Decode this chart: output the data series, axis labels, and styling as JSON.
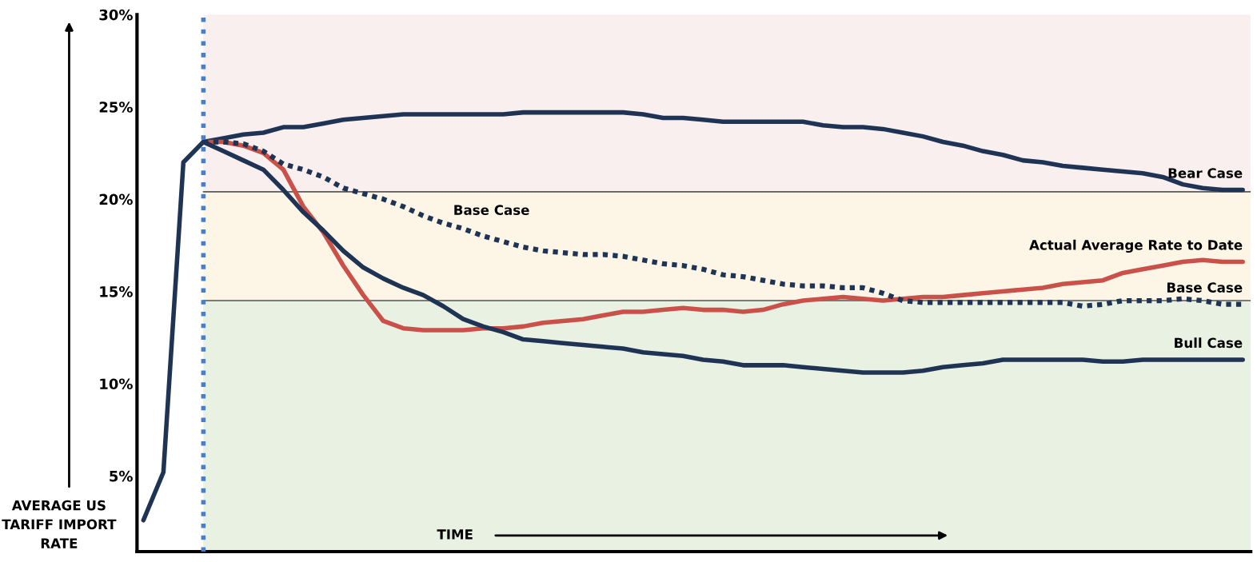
{
  "chart_data": {
    "type": "line",
    "ylabel": "AVERAGE US\nTARIFF IMPORT\nRATE",
    "xlabel": "TIME",
    "categories": [
      null,
      null,
      null,
      null,
      null,
      null,
      null,
      null,
      null,
      null,
      null,
      null,
      null,
      null,
      null,
      null,
      null,
      null,
      null,
      null,
      null,
      null,
      null,
      null,
      null,
      null,
      null,
      null,
      null,
      null,
      null,
      null,
      null,
      null,
      null,
      null,
      null,
      null,
      null,
      null,
      null,
      null,
      null,
      null,
      null,
      null,
      null,
      null,
      null,
      null,
      null,
      null,
      null,
      null,
      null,
      null
    ],
    "series": [
      {
        "name": "Bear Case",
        "color": "#1f3354",
        "line_style": "solid",
        "values": [
          2.6,
          5.2,
          22.0,
          23.1,
          23.3,
          23.5,
          23.6,
          23.9,
          23.9,
          24.1,
          24.3,
          24.4,
          24.5,
          24.6,
          24.6,
          24.6,
          24.6,
          24.6,
          24.6,
          24.7,
          24.7,
          24.7,
          24.7,
          24.7,
          24.7,
          24.6,
          24.4,
          24.4,
          24.3,
          24.2,
          24.2,
          24.2,
          24.2,
          24.2,
          24.0,
          23.9,
          23.9,
          23.8,
          23.6,
          23.4,
          23.1,
          22.9,
          22.6,
          22.4,
          22.1,
          22.0,
          21.8,
          21.7,
          21.6,
          21.5,
          21.4,
          21.2,
          20.8,
          20.6,
          20.5,
          20.5
        ]
      },
      {
        "name": "Actual Average Rate to Date",
        "color": "#c9514a",
        "line_style": "solid",
        "values": [
          null,
          null,
          null,
          23.1,
          23.1,
          22.9,
          22.5,
          21.6,
          19.6,
          18.2,
          16.4,
          14.8,
          13.4,
          13.0,
          12.9,
          12.9,
          12.9,
          13.0,
          13.0,
          13.1,
          13.3,
          13.4,
          13.5,
          13.7,
          13.9,
          13.9,
          14.0,
          14.1,
          14.0,
          14.0,
          13.9,
          14.0,
          14.3,
          14.5,
          14.6,
          14.7,
          14.6,
          14.5,
          14.6,
          14.7,
          14.7,
          14.8,
          14.9,
          15.0,
          15.1,
          15.2,
          15.4,
          15.5,
          15.6,
          16.0,
          16.2,
          16.4,
          16.6,
          16.7,
          16.6,
          16.6
        ]
      },
      {
        "name": "Base Case",
        "color": "#1f3354",
        "line_style": "dotted",
        "values": [
          null,
          null,
          null,
          23.1,
          23.1,
          23.0,
          22.6,
          21.9,
          21.6,
          21.2,
          20.6,
          20.3,
          20.0,
          19.6,
          19.1,
          18.7,
          18.4,
          18.0,
          17.7,
          17.4,
          17.2,
          17.1,
          17.0,
          17.0,
          16.9,
          16.7,
          16.5,
          16.4,
          16.2,
          15.9,
          15.8,
          15.6,
          15.4,
          15.3,
          15.3,
          15.2,
          15.2,
          14.9,
          14.5,
          14.4,
          14.4,
          14.4,
          14.4,
          14.4,
          14.4,
          14.4,
          14.4,
          14.2,
          14.3,
          14.5,
          14.5,
          14.5,
          14.6,
          14.5,
          14.3,
          14.3
        ]
      },
      {
        "name": "Bull Case",
        "color": "#1f3354",
        "line_style": "solid",
        "values": [
          null,
          null,
          null,
          23.1,
          22.6,
          22.1,
          21.6,
          20.5,
          19.3,
          18.3,
          17.2,
          16.3,
          15.7,
          15.2,
          14.8,
          14.2,
          13.5,
          13.1,
          12.8,
          12.4,
          12.3,
          12.2,
          12.1,
          12.0,
          11.9,
          11.7,
          11.6,
          11.5,
          11.3,
          11.2,
          11.0,
          11.0,
          11.0,
          10.9,
          10.8,
          10.7,
          10.6,
          10.6,
          10.6,
          10.7,
          10.9,
          11.0,
          11.1,
          11.3,
          11.3,
          11.3,
          11.3,
          11.3,
          11.2,
          11.2,
          11.3,
          11.3,
          11.3,
          11.3,
          11.3,
          11.3
        ]
      }
    ],
    "ylim": [
      0.9,
      30
    ],
    "yticks": [
      {
        "value": 5,
        "label": "5%"
      },
      {
        "value": 10,
        "label": "10%"
      },
      {
        "value": 15,
        "label": "15%"
      },
      {
        "value": 20,
        "label": "20%"
      },
      {
        "value": 25,
        "label": "25%"
      },
      {
        "value": 30,
        "label": "30%"
      }
    ],
    "tick_labels": "y",
    "grid": false,
    "bands": [
      {
        "axis": "y",
        "from": 20.4,
        "to": 30,
        "color": "#f8efee"
      },
      {
        "axis": "y",
        "from": 14.5,
        "to": 20.4,
        "color": "#fdf6e6"
      },
      {
        "axis": "y",
        "from": 0.9,
        "to": 14.5,
        "color": "#e9f1e3"
      }
    ],
    "annotations": [
      "Base Case"
    ]
  }
}
